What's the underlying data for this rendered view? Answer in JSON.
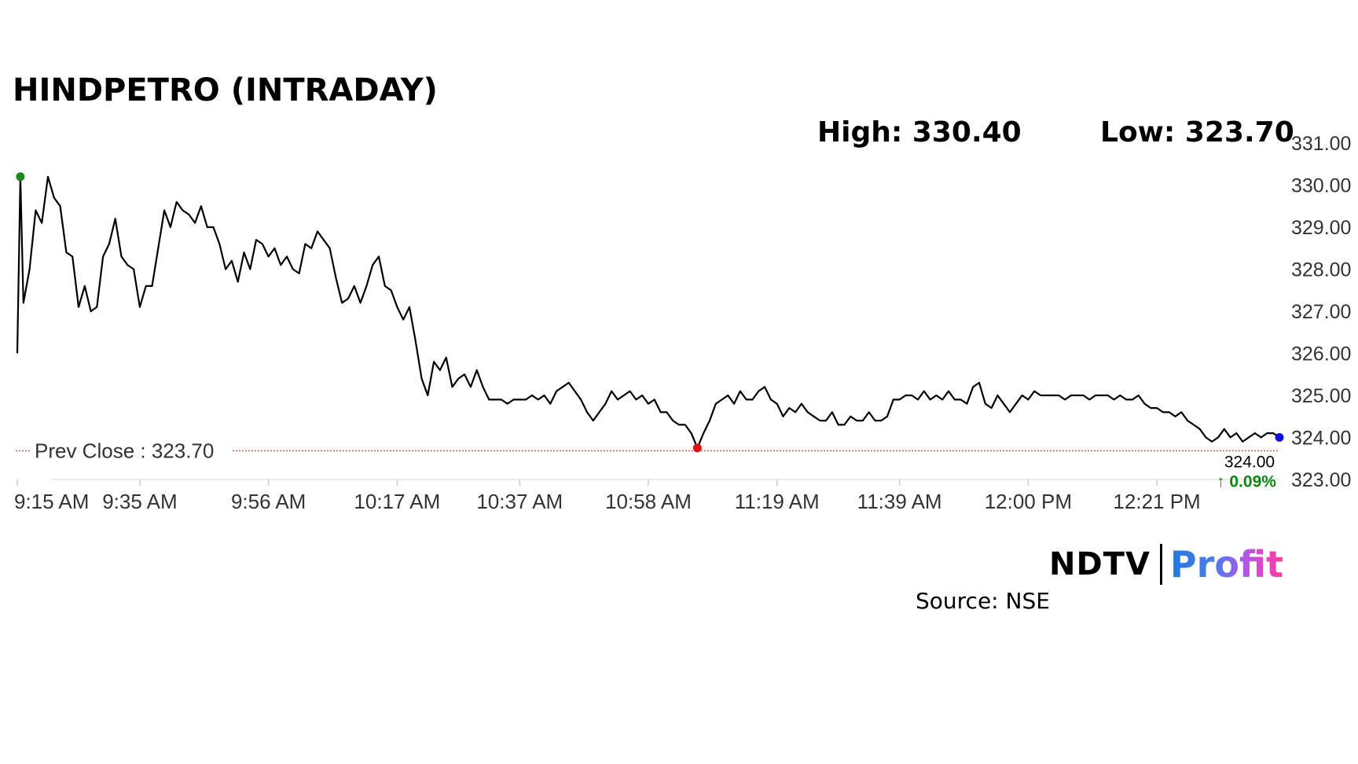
{
  "header": {
    "title": "HINDPETRO (INTRADAY)",
    "high": "High: 330.40",
    "low": "Low: 323.70"
  },
  "branding": {
    "logo_ndtv": "NDTV",
    "logo_profit": "Profit",
    "source": "Source: NSE"
  },
  "colors": {
    "line": "#000000",
    "open_marker": "#1a8a1a",
    "low_marker": "#e01010",
    "last_marker": "#1010e0",
    "prev_close_line": "#e05050",
    "change_up": "#0a8a0a"
  },
  "chart_data": {
    "type": "line",
    "title": "HINDPETRO (INTRADAY)",
    "ylim": [
      323,
      331
    ],
    "yticks": [
      "331.00",
      "330.00",
      "329.00",
      "328.00",
      "327.00",
      "326.00",
      "325.00",
      "324.00",
      "323.00"
    ],
    "xticks": [
      "9:15 AM",
      "9:35 AM",
      "9:56 AM",
      "10:17 AM",
      "10:37 AM",
      "10:58 AM",
      "11:19 AM",
      "11:39 AM",
      "12:00 PM",
      "12:21 PM"
    ],
    "xtick_minutes": [
      0,
      20,
      41,
      62,
      82,
      103,
      124,
      144,
      165,
      186
    ],
    "x_max_minutes": 206,
    "prev_close": 323.7,
    "prev_close_label": "Prev Close : 323.70",
    "last_price_label": "324.00",
    "change_label": "↑ 0.09%",
    "markers": {
      "open": {
        "x": 0.5,
        "y": 330.2
      },
      "low": {
        "x": 111,
        "y": 323.75
      },
      "last": {
        "x": 206,
        "y": 324.0
      }
    },
    "series": [
      {
        "values": [
          [
            0,
            326.0
          ],
          [
            0.5,
            330.2
          ],
          [
            1,
            327.2
          ],
          [
            2,
            328.0
          ],
          [
            3,
            329.4
          ],
          [
            4,
            329.1
          ],
          [
            5,
            330.2
          ],
          [
            6,
            329.7
          ],
          [
            7,
            329.5
          ],
          [
            8,
            328.4
          ],
          [
            9,
            328.3
          ],
          [
            10,
            327.1
          ],
          [
            11,
            327.6
          ],
          [
            12,
            327.0
          ],
          [
            13,
            327.1
          ],
          [
            14,
            328.3
          ],
          [
            15,
            328.6
          ],
          [
            16,
            329.2
          ],
          [
            17,
            328.3
          ],
          [
            18,
            328.1
          ],
          [
            19,
            328.0
          ],
          [
            20,
            327.1
          ],
          [
            21,
            327.6
          ],
          [
            22,
            327.6
          ],
          [
            23,
            328.5
          ],
          [
            24,
            329.4
          ],
          [
            25,
            329.0
          ],
          [
            26,
            329.6
          ],
          [
            27,
            329.4
          ],
          [
            28,
            329.3
          ],
          [
            29,
            329.1
          ],
          [
            30,
            329.5
          ],
          [
            31,
            329.0
          ],
          [
            32,
            329.0
          ],
          [
            33,
            328.6
          ],
          [
            34,
            328.0
          ],
          [
            35,
            328.2
          ],
          [
            36,
            327.7
          ],
          [
            37,
            328.4
          ],
          [
            38,
            328.0
          ],
          [
            39,
            328.7
          ],
          [
            40,
            328.6
          ],
          [
            41,
            328.3
          ],
          [
            42,
            328.5
          ],
          [
            43,
            328.1
          ],
          [
            44,
            328.3
          ],
          [
            45,
            328.0
          ],
          [
            46,
            327.9
          ],
          [
            47,
            328.6
          ],
          [
            48,
            328.5
          ],
          [
            49,
            328.9
          ],
          [
            50,
            328.7
          ],
          [
            51,
            328.5
          ],
          [
            52,
            327.8
          ],
          [
            53,
            327.2
          ],
          [
            54,
            327.3
          ],
          [
            55,
            327.6
          ],
          [
            56,
            327.2
          ],
          [
            57,
            327.6
          ],
          [
            58,
            328.1
          ],
          [
            59,
            328.3
          ],
          [
            60,
            327.6
          ],
          [
            61,
            327.5
          ],
          [
            62,
            327.1
          ],
          [
            63,
            326.8
          ],
          [
            64,
            327.1
          ],
          [
            65,
            326.3
          ],
          [
            66,
            325.4
          ],
          [
            67,
            325.0
          ],
          [
            68,
            325.8
          ],
          [
            69,
            325.6
          ],
          [
            70,
            325.9
          ],
          [
            71,
            325.2
          ],
          [
            72,
            325.4
          ],
          [
            73,
            325.5
          ],
          [
            74,
            325.2
          ],
          [
            75,
            325.6
          ],
          [
            76,
            325.2
          ],
          [
            77,
            324.9
          ],
          [
            78,
            324.9
          ],
          [
            79,
            324.9
          ],
          [
            80,
            324.8
          ],
          [
            81,
            324.9
          ],
          [
            82,
            324.9
          ],
          [
            83,
            324.9
          ],
          [
            84,
            325.0
          ],
          [
            85,
            324.9
          ],
          [
            86,
            325.0
          ],
          [
            87,
            324.8
          ],
          [
            88,
            325.1
          ],
          [
            89,
            325.2
          ],
          [
            90,
            325.3
          ],
          [
            91,
            325.1
          ],
          [
            92,
            324.9
          ],
          [
            93,
            324.6
          ],
          [
            94,
            324.4
          ],
          [
            95,
            324.6
          ],
          [
            96,
            324.8
          ],
          [
            97,
            325.1
          ],
          [
            98,
            324.9
          ],
          [
            99,
            325.0
          ],
          [
            100,
            325.1
          ],
          [
            101,
            324.9
          ],
          [
            102,
            325.0
          ],
          [
            103,
            324.8
          ],
          [
            104,
            324.9
          ],
          [
            105,
            324.6
          ],
          [
            106,
            324.6
          ],
          [
            107,
            324.4
          ],
          [
            108,
            324.3
          ],
          [
            109,
            324.3
          ],
          [
            110,
            324.1
          ],
          [
            111,
            323.75
          ],
          [
            112,
            324.1
          ],
          [
            113,
            324.4
          ],
          [
            114,
            324.8
          ],
          [
            115,
            324.9
          ],
          [
            116,
            325.0
          ],
          [
            117,
            324.8
          ],
          [
            118,
            325.1
          ],
          [
            119,
            324.9
          ],
          [
            120,
            324.9
          ],
          [
            121,
            325.1
          ],
          [
            122,
            325.2
          ],
          [
            123,
            324.9
          ],
          [
            124,
            324.8
          ],
          [
            125,
            324.5
          ],
          [
            126,
            324.7
          ],
          [
            127,
            324.6
          ],
          [
            128,
            324.8
          ],
          [
            129,
            324.6
          ],
          [
            130,
            324.5
          ],
          [
            131,
            324.4
          ],
          [
            132,
            324.4
          ],
          [
            133,
            324.6
          ],
          [
            134,
            324.3
          ],
          [
            135,
            324.3
          ],
          [
            136,
            324.5
          ],
          [
            137,
            324.4
          ],
          [
            138,
            324.4
          ],
          [
            139,
            324.6
          ],
          [
            140,
            324.4
          ],
          [
            141,
            324.4
          ],
          [
            142,
            324.5
          ],
          [
            143,
            324.9
          ],
          [
            144,
            324.9
          ],
          [
            145,
            325.0
          ],
          [
            146,
            325.0
          ],
          [
            147,
            324.9
          ],
          [
            148,
            325.1
          ],
          [
            149,
            324.9
          ],
          [
            150,
            325.0
          ],
          [
            151,
            324.9
          ],
          [
            152,
            325.1
          ],
          [
            153,
            324.9
          ],
          [
            154,
            324.9
          ],
          [
            155,
            324.8
          ],
          [
            156,
            325.2
          ],
          [
            157,
            325.3
          ],
          [
            158,
            324.8
          ],
          [
            159,
            324.7
          ],
          [
            160,
            325.0
          ],
          [
            161,
            324.8
          ],
          [
            162,
            324.6
          ],
          [
            163,
            324.8
          ],
          [
            164,
            325.0
          ],
          [
            165,
            324.9
          ],
          [
            166,
            325.1
          ],
          [
            167,
            325.0
          ],
          [
            168,
            325.0
          ],
          [
            169,
            325.0
          ],
          [
            170,
            325.0
          ],
          [
            171,
            324.9
          ],
          [
            172,
            325.0
          ],
          [
            173,
            325.0
          ],
          [
            174,
            325.0
          ],
          [
            175,
            324.9
          ],
          [
            176,
            325.0
          ],
          [
            177,
            325.0
          ],
          [
            178,
            325.0
          ],
          [
            179,
            324.9
          ],
          [
            180,
            325.0
          ],
          [
            181,
            324.9
          ],
          [
            182,
            324.9
          ],
          [
            183,
            325.0
          ],
          [
            184,
            324.8
          ],
          [
            185,
            324.7
          ],
          [
            186,
            324.7
          ],
          [
            187,
            324.6
          ],
          [
            188,
            324.6
          ],
          [
            189,
            324.5
          ],
          [
            190,
            324.6
          ],
          [
            191,
            324.4
          ],
          [
            192,
            324.3
          ],
          [
            193,
            324.2
          ],
          [
            194,
            324.0
          ],
          [
            195,
            323.9
          ],
          [
            196,
            324.0
          ],
          [
            197,
            324.2
          ],
          [
            198,
            324.0
          ],
          [
            199,
            324.1
          ],
          [
            200,
            323.9
          ],
          [
            201,
            324.0
          ],
          [
            202,
            324.1
          ],
          [
            203,
            324.0
          ],
          [
            204,
            324.1
          ],
          [
            205,
            324.1
          ],
          [
            206,
            324.0
          ]
        ]
      }
    ]
  }
}
